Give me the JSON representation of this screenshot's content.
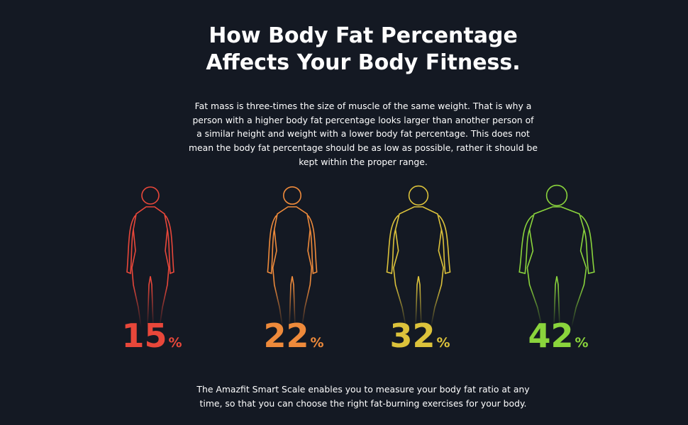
{
  "title": [
    "How Body Fat Percentage",
    "Affects Your Body Fitness."
  ],
  "intro": [
    "Fat mass is three-times the size of muscle of the same weight. That is why a",
    "person with a higher body fat percentage looks larger than another person of",
    "a similar height and weight with a lower body fat percentage. This does not",
    "mean the body fat percentage should be as low as possible, rather it should be",
    "kept within the proper range."
  ],
  "figures": [
    {
      "value": 15,
      "unit": "%",
      "color": "#e8473a"
    },
    {
      "value": 22,
      "unit": "%",
      "color": "#ee8a3b"
    },
    {
      "value": 32,
      "unit": "%",
      "color": "#dcc23b"
    },
    {
      "value": 42,
      "unit": "%",
      "color": "#8ad43c"
    }
  ],
  "footer": [
    "The Amazfit Smart Scale enables you to measure your body fat ratio at any",
    "time, so that you can choose the right fat-burning exercises for your body."
  ]
}
